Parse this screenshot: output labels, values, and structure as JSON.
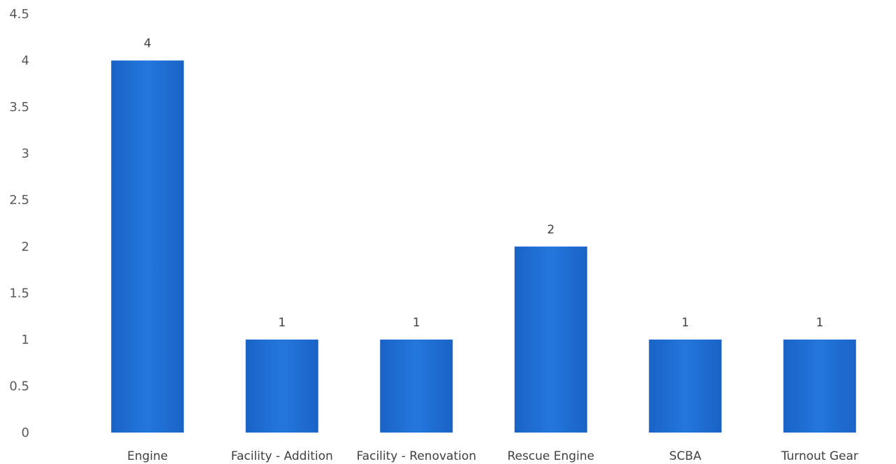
{
  "chart_data": {
    "type": "bar",
    "categories": [
      "Engine",
      "Facility - Addition",
      "Facility - Renovation",
      "Rescue Engine",
      "SCBA",
      "Turnout Gear"
    ],
    "values": [
      4,
      1,
      1,
      2,
      1,
      1
    ],
    "data_labels": [
      "4",
      "1",
      "1",
      "2",
      "1",
      "1"
    ],
    "title": "",
    "xlabel": "",
    "ylabel": "",
    "ylim": [
      0,
      4.5
    ],
    "y_ticks": [
      0,
      0.5,
      1,
      1.5,
      2,
      2.5,
      3,
      3.5,
      4,
      4.5
    ],
    "y_tick_labels": [
      "0",
      "0.5",
      "1",
      "1.5",
      "2",
      "2.5",
      "3",
      "3.5",
      "4",
      "4.5"
    ],
    "grid": false,
    "legend": false,
    "bar_color": "#1f6fd1"
  }
}
